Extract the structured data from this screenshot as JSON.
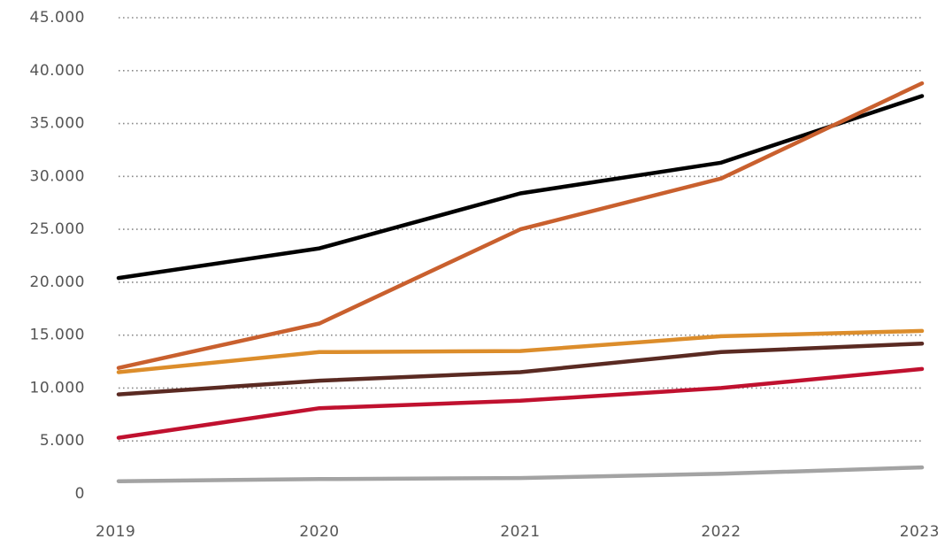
{
  "chart_data": {
    "type": "line",
    "title": "",
    "xlabel": "",
    "ylabel": "",
    "categories": [
      "2019",
      "2020",
      "2021",
      "2022",
      "2023"
    ],
    "ylim": [
      0,
      45000
    ],
    "yticks": [
      {
        "value": 0,
        "label": "0"
      },
      {
        "value": 5000,
        "label": "5.000"
      },
      {
        "value": 10000,
        "label": "10.000"
      },
      {
        "value": 15000,
        "label": "15.000"
      },
      {
        "value": 20000,
        "label": "20.000"
      },
      {
        "value": 25000,
        "label": "25.000"
      },
      {
        "value": 30000,
        "label": "30.000"
      },
      {
        "value": 35000,
        "label": "35.000"
      },
      {
        "value": 40000,
        "label": "40.000"
      },
      {
        "value": 45000,
        "label": "45.000"
      }
    ],
    "grid": true,
    "legend": "none",
    "series": [
      {
        "color": "#000000",
        "values": [
          20400,
          23200,
          28400,
          31300,
          37600
        ]
      },
      {
        "color": "#c9602e",
        "values": [
          11900,
          16100,
          25000,
          29800,
          38800
        ]
      },
      {
        "color": "#dc8d2b",
        "values": [
          11500,
          13400,
          13500,
          14900,
          15400
        ]
      },
      {
        "color": "#5a2a22",
        "values": [
          9400,
          10700,
          11500,
          13400,
          14200
        ]
      },
      {
        "color": "#c0112f",
        "values": [
          5300,
          8100,
          8800,
          10000,
          11800
        ]
      },
      {
        "color": "#a3a3a3",
        "values": [
          1200,
          1400,
          1500,
          1900,
          2500
        ]
      }
    ]
  }
}
